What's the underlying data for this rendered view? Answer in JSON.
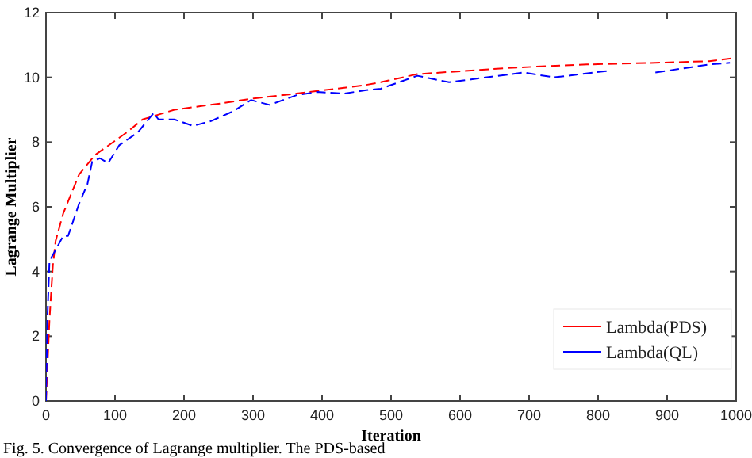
{
  "chart_data": {
    "type": "line",
    "xlabel": "Iteration",
    "ylabel": "Lagrange Multiplier",
    "xlim": [
      0,
      1000
    ],
    "ylim": [
      0,
      12
    ],
    "xticks": [
      0,
      100,
      200,
      300,
      400,
      500,
      600,
      700,
      800,
      900,
      1000
    ],
    "yticks": [
      0,
      2,
      4,
      6,
      8,
      10,
      12
    ],
    "legend": "bottom right",
    "grid": false,
    "line_style": "dashed",
    "annotations": [
      "Fig. 5. Convergence of Lagrange multiplier. The PDS-based"
    ],
    "series": [
      {
        "name": "Lambda(PDS)",
        "color": "#ff0000",
        "x": [
          0,
          3,
          5,
          10,
          14,
          25,
          48,
          71,
          117,
          140,
          186,
          255,
          301,
          363,
          462,
          485,
          538,
          676,
          784,
          883,
          961,
          998
        ],
        "values": [
          0,
          1.5,
          2.5,
          4.2,
          4.95,
          5.8,
          7.0,
          7.6,
          8.3,
          8.7,
          9.0,
          9.2,
          9.35,
          9.5,
          9.76,
          9.85,
          10.1,
          10.3,
          10.4,
          10.45,
          10.5,
          10.6
        ]
      },
      {
        "name": "Lambda(QL)",
        "color": "#0000ff",
        "x": [
          0,
          2,
          5,
          7,
          25,
          32,
          48,
          60,
          67,
          78,
          90,
          106,
          133,
          156,
          163,
          186,
          213,
          239,
          271,
          297,
          324,
          363,
          393,
          432,
          462,
          485,
          538,
          584,
          692,
          736,
          814,
          null,
          883,
          961,
          991
        ],
        "values": [
          0,
          2.5,
          4.3,
          4.4,
          5.1,
          5.1,
          6.1,
          6.7,
          7.4,
          7.5,
          7.35,
          7.9,
          8.3,
          8.9,
          8.7,
          8.7,
          8.5,
          8.65,
          8.95,
          9.3,
          9.15,
          9.45,
          9.55,
          9.5,
          9.6,
          9.65,
          10.05,
          9.85,
          10.15,
          10.0,
          10.2,
          null,
          10.15,
          10.4,
          10.45
        ]
      }
    ]
  }
}
